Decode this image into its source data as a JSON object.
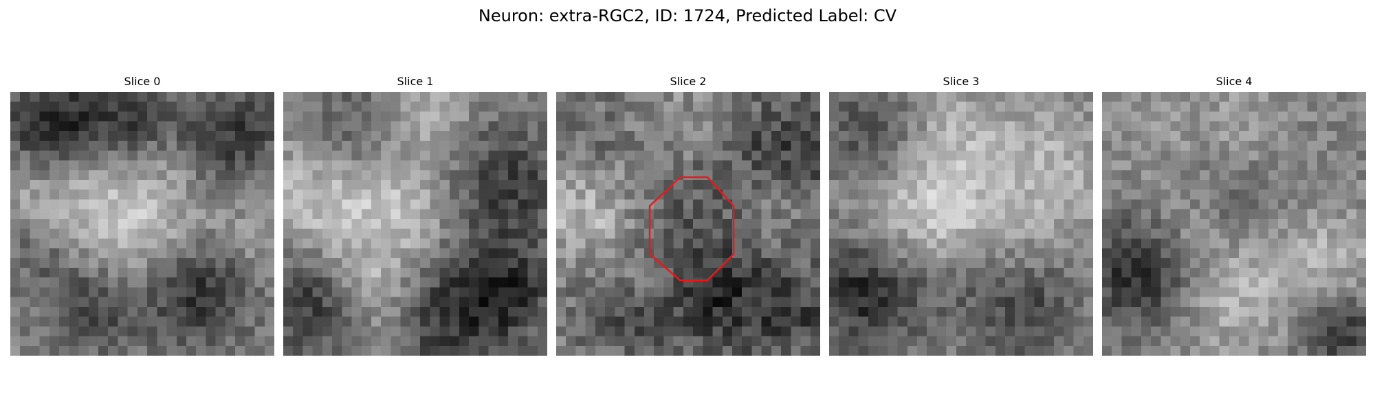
{
  "figure": {
    "title": "Neuron: extra-RGC2, ID: 1724, Predicted Label: CV"
  },
  "slices": [
    {
      "label": "Slice 0",
      "roi": false
    },
    {
      "label": "Slice 1",
      "roi": false
    },
    {
      "label": "Slice 2",
      "roi": true
    },
    {
      "label": "Slice 3",
      "roi": false
    },
    {
      "label": "Slice 4",
      "roi": false
    }
  ],
  "colors": {
    "roi_outline": "#e8191c",
    "background": "#ffffff"
  }
}
